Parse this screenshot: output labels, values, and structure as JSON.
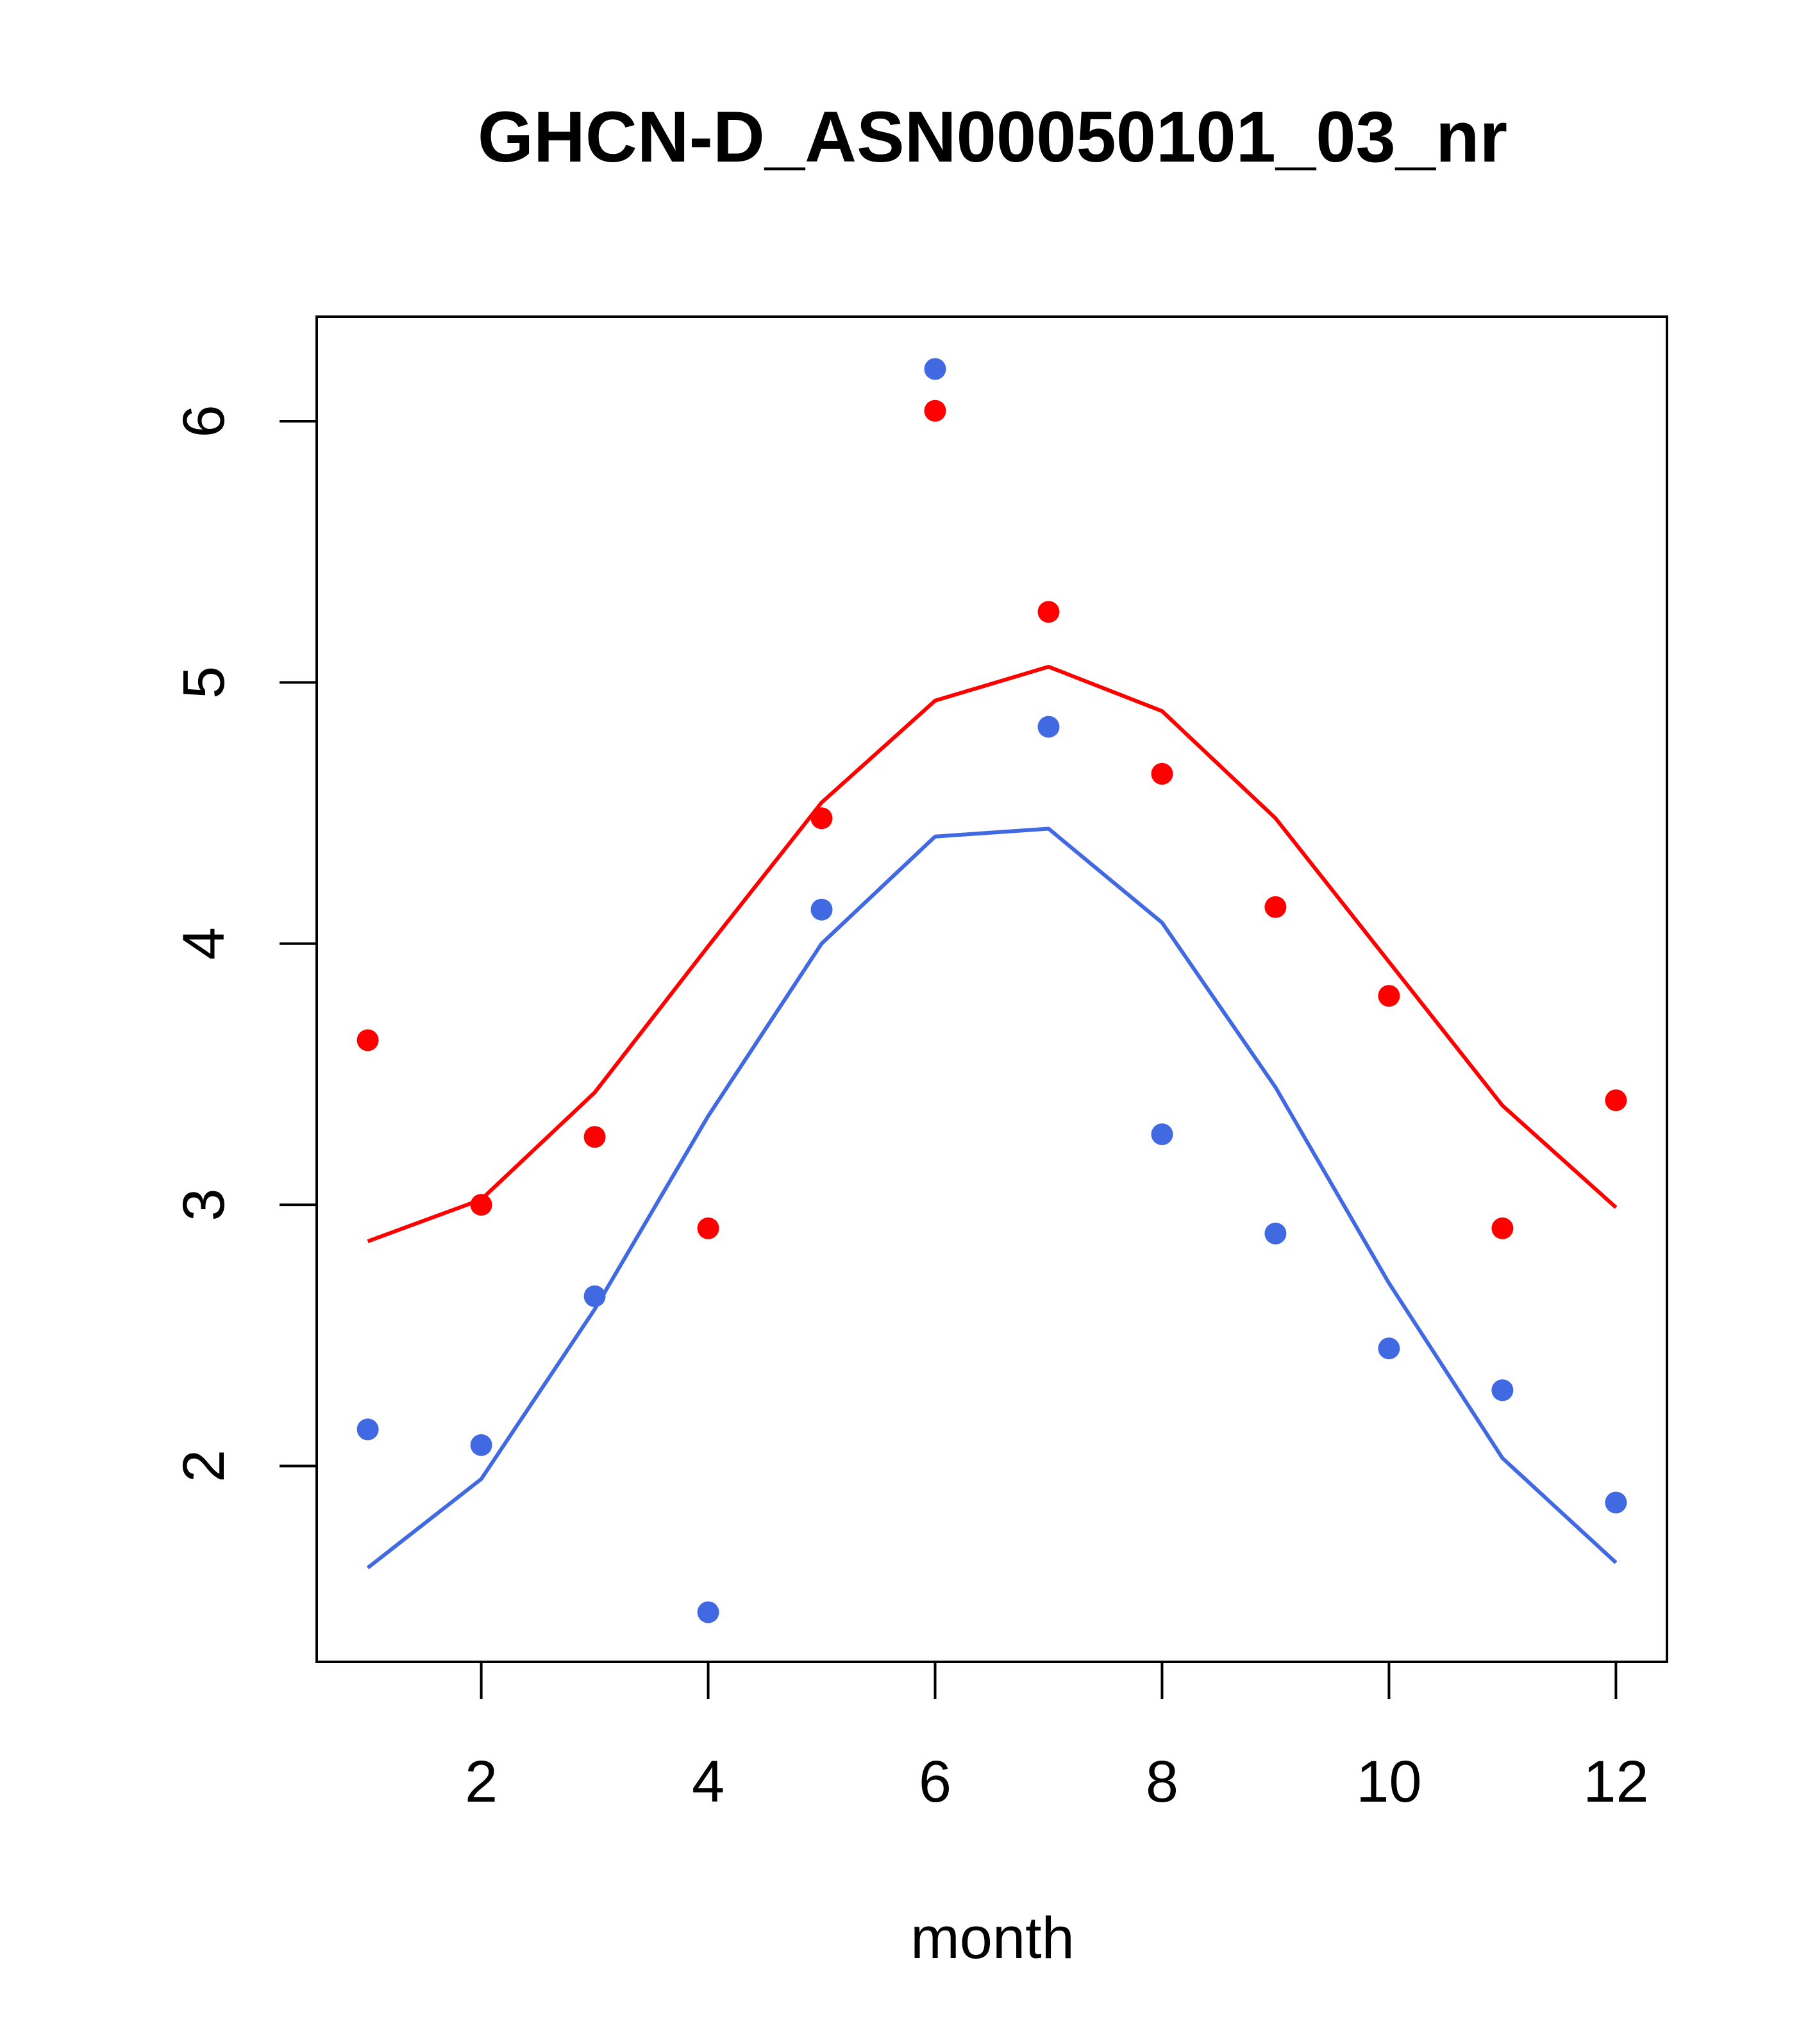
{
  "chart_data": {
    "type": "scatter",
    "title": "GHCN-D_ASN00050101_03_nr",
    "xlabel": "month",
    "ylabel": "",
    "xlim": [
      0.55,
      12.45
    ],
    "ylim": [
      1.25,
      6.4
    ],
    "x_ticks": [
      "2",
      "4",
      "6",
      "8",
      "10",
      "12"
    ],
    "y_ticks": [
      "2",
      "3",
      "4",
      "5",
      "6"
    ],
    "grid": false,
    "legend": "none",
    "x": [
      1,
      2,
      3,
      4,
      5,
      6,
      7,
      8,
      9,
      10,
      11,
      12
    ],
    "series": [
      {
        "color": "#ff0000",
        "points": [
          3.63,
          3.0,
          3.26,
          2.91,
          4.48,
          6.04,
          5.27,
          4.65,
          4.14,
          3.8,
          2.91,
          3.4
        ],
        "line": [
          2.86,
          3.02,
          3.43,
          3.99,
          4.54,
          4.93,
          5.06,
          4.89,
          4.48,
          3.93,
          3.38,
          2.99
        ]
      },
      {
        "color": "#4169e1",
        "points": [
          2.14,
          2.08,
          2.65,
          1.44,
          4.13,
          6.2,
          4.83,
          3.27,
          2.89,
          2.45,
          2.29,
          1.86
        ],
        "line": [
          1.61,
          1.95,
          2.6,
          3.34,
          4.0,
          4.41,
          4.44,
          4.08,
          3.45,
          2.7,
          2.03,
          1.63
        ]
      }
    ]
  }
}
